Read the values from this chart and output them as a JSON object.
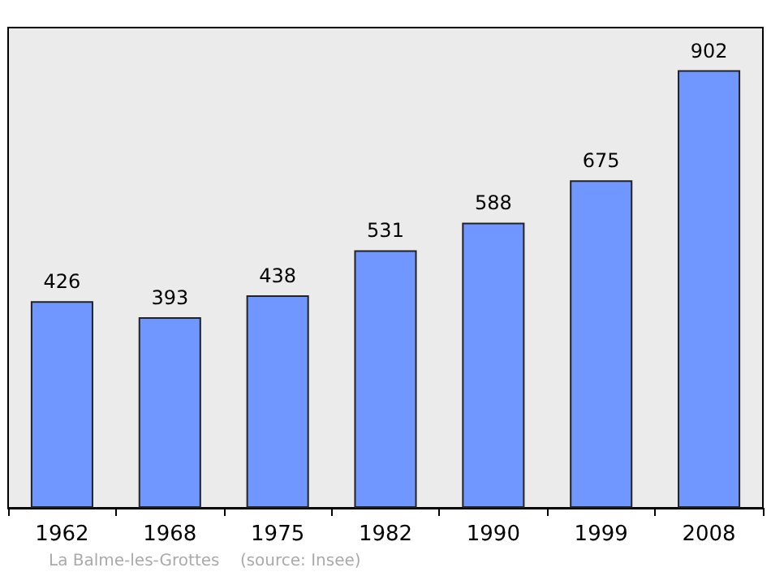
{
  "chart_data": {
    "type": "bar",
    "categories": [
      "1962",
      "1968",
      "1975",
      "1982",
      "1990",
      "1999",
      "2008"
    ],
    "values": [
      426,
      393,
      438,
      531,
      588,
      675,
      902
    ],
    "color": "#7097ff",
    "ylim": [
      0,
      990
    ],
    "data_labels": true,
    "grid": false,
    "annotations": [
      "La Balme-les-Grottes    (source: Insee)"
    ]
  }
}
